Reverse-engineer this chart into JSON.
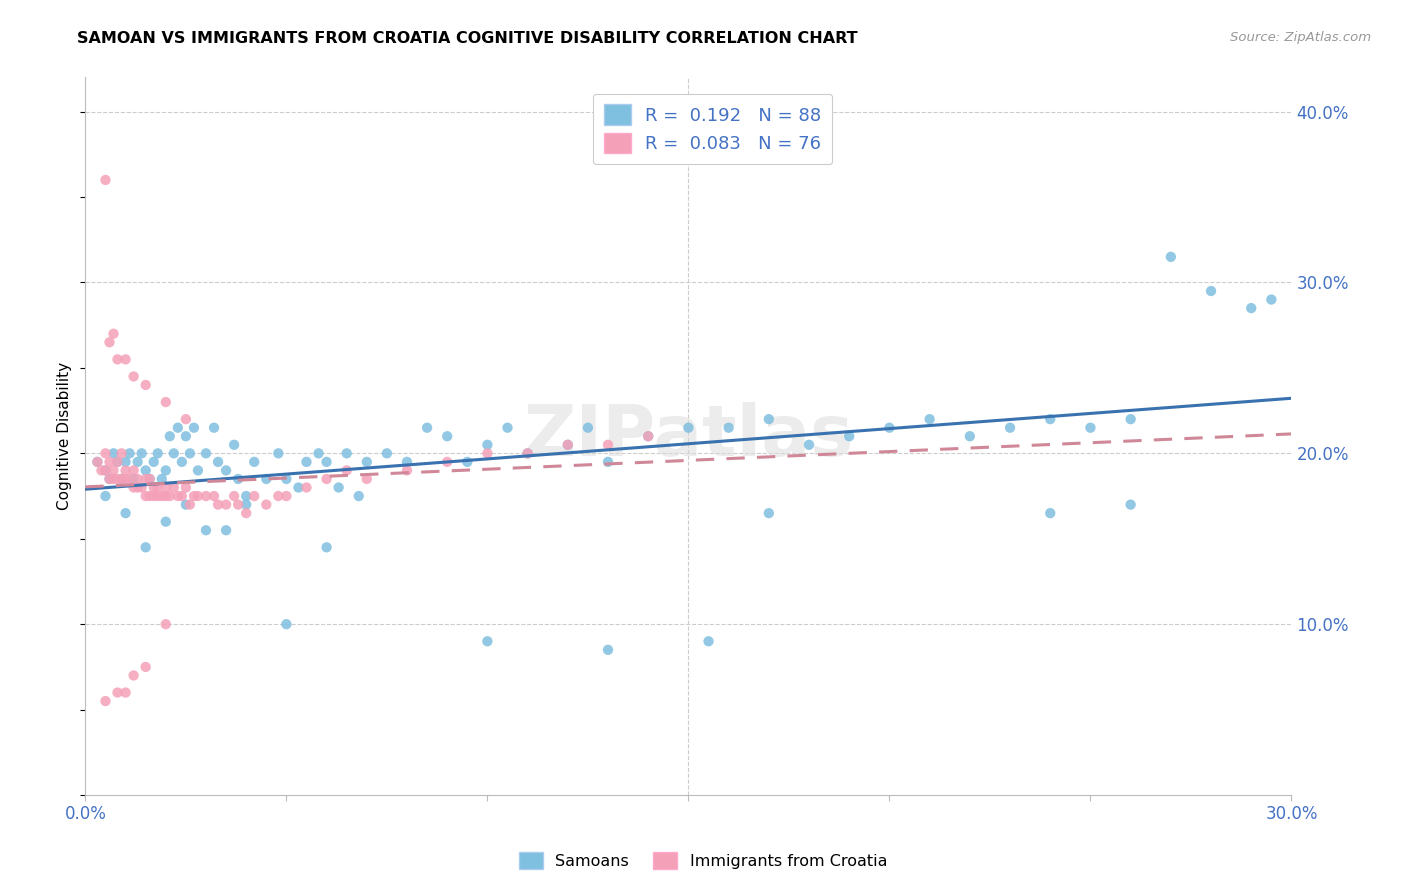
{
  "title": "SAMOAN VS IMMIGRANTS FROM CROATIA COGNITIVE DISABILITY CORRELATION CHART",
  "source": "Source: ZipAtlas.com",
  "ylabel": "Cognitive Disability",
  "xlim": [
    0.0,
    0.3
  ],
  "ylim": [
    0.0,
    0.42
  ],
  "blue_R": 0.192,
  "blue_N": 88,
  "pink_R": 0.083,
  "pink_N": 76,
  "blue_color": "#7fbfdf",
  "pink_color": "#f4a0b8",
  "blue_line_color": "#3a72b0",
  "pink_line_color": "#d08898",
  "watermark": "ZIPatlas",
  "legend_label_blue": "Samoans",
  "legend_label_pink": "Immigrants from Croatia",
  "blue_x": [
    0.003,
    0.005,
    0.006,
    0.007,
    0.008,
    0.009,
    0.01,
    0.011,
    0.012,
    0.013,
    0.014,
    0.015,
    0.016,
    0.017,
    0.018,
    0.019,
    0.02,
    0.021,
    0.022,
    0.023,
    0.024,
    0.025,
    0.026,
    0.027,
    0.028,
    0.03,
    0.032,
    0.033,
    0.035,
    0.037,
    0.038,
    0.04,
    0.042,
    0.045,
    0.048,
    0.05,
    0.053,
    0.055,
    0.058,
    0.06,
    0.063,
    0.065,
    0.068,
    0.07,
    0.075,
    0.08,
    0.085,
    0.09,
    0.095,
    0.1,
    0.105,
    0.11,
    0.12,
    0.125,
    0.13,
    0.14,
    0.15,
    0.16,
    0.17,
    0.18,
    0.19,
    0.2,
    0.21,
    0.22,
    0.23,
    0.24,
    0.25,
    0.26,
    0.27,
    0.28,
    0.29,
    0.295,
    0.005,
    0.01,
    0.015,
    0.02,
    0.025,
    0.03,
    0.035,
    0.04,
    0.05,
    0.06,
    0.1,
    0.13,
    0.155,
    0.17,
    0.24,
    0.26
  ],
  "blue_y": [
    0.195,
    0.19,
    0.185,
    0.2,
    0.195,
    0.185,
    0.195,
    0.2,
    0.185,
    0.195,
    0.2,
    0.19,
    0.185,
    0.195,
    0.2,
    0.185,
    0.19,
    0.21,
    0.2,
    0.215,
    0.195,
    0.21,
    0.2,
    0.215,
    0.19,
    0.2,
    0.215,
    0.195,
    0.19,
    0.205,
    0.185,
    0.175,
    0.195,
    0.185,
    0.2,
    0.185,
    0.18,
    0.195,
    0.2,
    0.195,
    0.18,
    0.2,
    0.175,
    0.195,
    0.2,
    0.195,
    0.215,
    0.21,
    0.195,
    0.205,
    0.215,
    0.2,
    0.205,
    0.215,
    0.195,
    0.21,
    0.215,
    0.215,
    0.22,
    0.205,
    0.21,
    0.215,
    0.22,
    0.21,
    0.215,
    0.22,
    0.215,
    0.22,
    0.315,
    0.295,
    0.285,
    0.29,
    0.175,
    0.165,
    0.145,
    0.16,
    0.17,
    0.155,
    0.155,
    0.17,
    0.1,
    0.145,
    0.09,
    0.085,
    0.09,
    0.165,
    0.165,
    0.17
  ],
  "pink_x": [
    0.003,
    0.004,
    0.005,
    0.005,
    0.006,
    0.006,
    0.007,
    0.007,
    0.008,
    0.008,
    0.009,
    0.009,
    0.01,
    0.01,
    0.011,
    0.012,
    0.012,
    0.013,
    0.013,
    0.014,
    0.015,
    0.015,
    0.016,
    0.016,
    0.017,
    0.017,
    0.018,
    0.018,
    0.019,
    0.02,
    0.02,
    0.021,
    0.022,
    0.023,
    0.024,
    0.025,
    0.026,
    0.027,
    0.028,
    0.03,
    0.032,
    0.033,
    0.035,
    0.037,
    0.038,
    0.04,
    0.042,
    0.045,
    0.048,
    0.05,
    0.055,
    0.06,
    0.065,
    0.07,
    0.08,
    0.09,
    0.1,
    0.11,
    0.12,
    0.13,
    0.14,
    0.005,
    0.006,
    0.007,
    0.008,
    0.01,
    0.012,
    0.015,
    0.02,
    0.025,
    0.005,
    0.008,
    0.01,
    0.012,
    0.015,
    0.02
  ],
  "pink_y": [
    0.195,
    0.19,
    0.19,
    0.2,
    0.185,
    0.195,
    0.19,
    0.185,
    0.195,
    0.185,
    0.2,
    0.185,
    0.19,
    0.185,
    0.185,
    0.18,
    0.19,
    0.18,
    0.185,
    0.18,
    0.185,
    0.175,
    0.185,
    0.175,
    0.18,
    0.175,
    0.18,
    0.175,
    0.175,
    0.175,
    0.18,
    0.175,
    0.18,
    0.175,
    0.175,
    0.18,
    0.17,
    0.175,
    0.175,
    0.175,
    0.175,
    0.17,
    0.17,
    0.175,
    0.17,
    0.165,
    0.175,
    0.17,
    0.175,
    0.175,
    0.18,
    0.185,
    0.19,
    0.185,
    0.19,
    0.195,
    0.2,
    0.2,
    0.205,
    0.205,
    0.21,
    0.36,
    0.265,
    0.27,
    0.255,
    0.255,
    0.245,
    0.24,
    0.23,
    0.22,
    0.055,
    0.06,
    0.06,
    0.07,
    0.075,
    0.1
  ]
}
